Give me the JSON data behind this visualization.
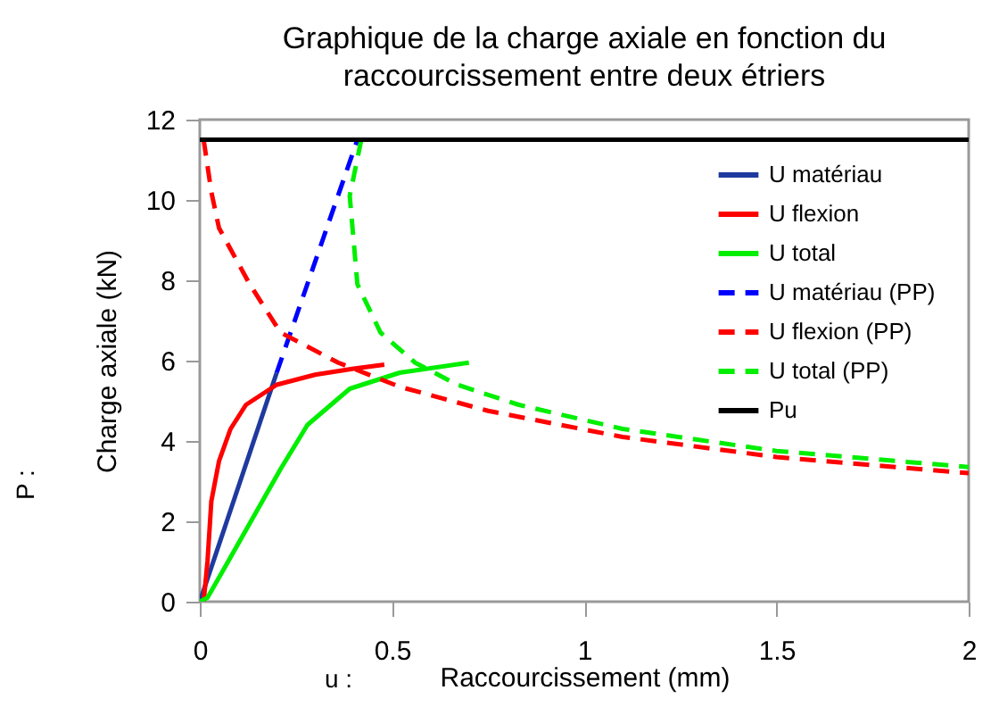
{
  "chart_data": {
    "type": "line",
    "title": "Graphique de la charge axiale en fonction du raccourcissement entre deux étriers",
    "xlabel": "Raccourcissement (mm)",
    "ylabel": "Charge axiale (kN)",
    "annotations": [
      "P :",
      "u :"
    ],
    "xlim": [
      0,
      2
    ],
    "ylim": [
      0,
      12
    ],
    "xticks": [
      0,
      0.5,
      1,
      1.5,
      2
    ],
    "yticks": [
      0,
      2,
      4,
      6,
      8,
      10,
      12
    ],
    "grid": false,
    "legend": "top right",
    "marker": "none",
    "series": [
      {
        "name": "U matériau",
        "color": "#1f3a9e",
        "line_style": "solid",
        "x": [
          0,
          0.2
        ],
        "values": [
          0,
          5.7
        ]
      },
      {
        "name": "U flexion",
        "color": "#ff0000",
        "line_style": "solid",
        "x": [
          0.01,
          0.02,
          0.03,
          0.05,
          0.08,
          0.12,
          0.2,
          0.3,
          0.4,
          0.48
        ],
        "values": [
          0,
          1,
          2.5,
          3.5,
          4.3,
          4.9,
          5.4,
          5.65,
          5.8,
          5.9
        ]
      },
      {
        "name": "U total",
        "color": "#00ee00",
        "line_style": "solid",
        "x": [
          0,
          0.02,
          0.05,
          0.13,
          0.21,
          0.28,
          0.39,
          0.52,
          0.7
        ],
        "values": [
          0,
          0.1,
          0.6,
          1.95,
          3.3,
          4.4,
          5.3,
          5.7,
          5.95
        ]
      },
      {
        "name": "U matériau (PP)",
        "color": "#0000ff",
        "line_style": "dashed",
        "x": [
          0.2,
          0.41
        ],
        "values": [
          5.7,
          11.5
        ]
      },
      {
        "name": "U flexion (PP)",
        "color": "#ff0000",
        "line_style": "dashed",
        "x": [
          0.01,
          0.03,
          0.05,
          0.13,
          0.21,
          0.36,
          0.52,
          0.75,
          1.1,
          1.5,
          2
        ],
        "values": [
          11.5,
          10.2,
          9.3,
          7.9,
          6.7,
          5.95,
          5.35,
          4.75,
          4.1,
          3.6,
          3.2
        ]
      },
      {
        "name": "U total (PP)",
        "color": "#00ee00",
        "line_style": "dashed",
        "x": [
          0.42,
          0.39,
          0.41,
          0.47,
          0.56,
          0.67,
          0.83,
          1.1,
          1.5,
          2
        ],
        "values": [
          11.5,
          10.1,
          7.9,
          6.7,
          5.95,
          5.4,
          4.9,
          4.3,
          3.75,
          3.35
        ]
      },
      {
        "name": "Pu",
        "color": "#000000",
        "line_style": "solid",
        "x": [
          0,
          2
        ],
        "values": [
          11.5,
          11.5
        ]
      }
    ]
  }
}
